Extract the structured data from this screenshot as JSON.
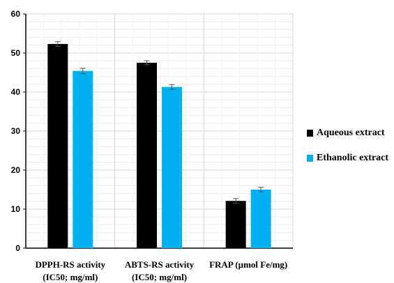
{
  "chart_data": {
    "type": "bar",
    "title": "",
    "xlabel": "",
    "ylabel": "",
    "ylim": [
      0,
      60
    ],
    "yticks": [
      0,
      10,
      20,
      30,
      40,
      50,
      60
    ],
    "grid": true,
    "legend_position": "right",
    "categories": [
      [
        "DPPH-RS activity",
        "(IC50; mg/ml)"
      ],
      [
        "ABTS-RS activity",
        "(IC50; mg/ml)"
      ],
      [
        "FRAP (µmol Fe/mg)"
      ]
    ],
    "series": [
      {
        "name": "Aqueous extract",
        "color": "#000000",
        "values": [
          52.3,
          47.5,
          12.1
        ],
        "errors": [
          0.6,
          0.5,
          0.6
        ]
      },
      {
        "name": "Ethanolic extract",
        "color": "#00B0F0",
        "values": [
          45.4,
          41.3,
          15.0
        ],
        "errors": [
          0.7,
          0.6,
          0.6
        ]
      }
    ]
  }
}
